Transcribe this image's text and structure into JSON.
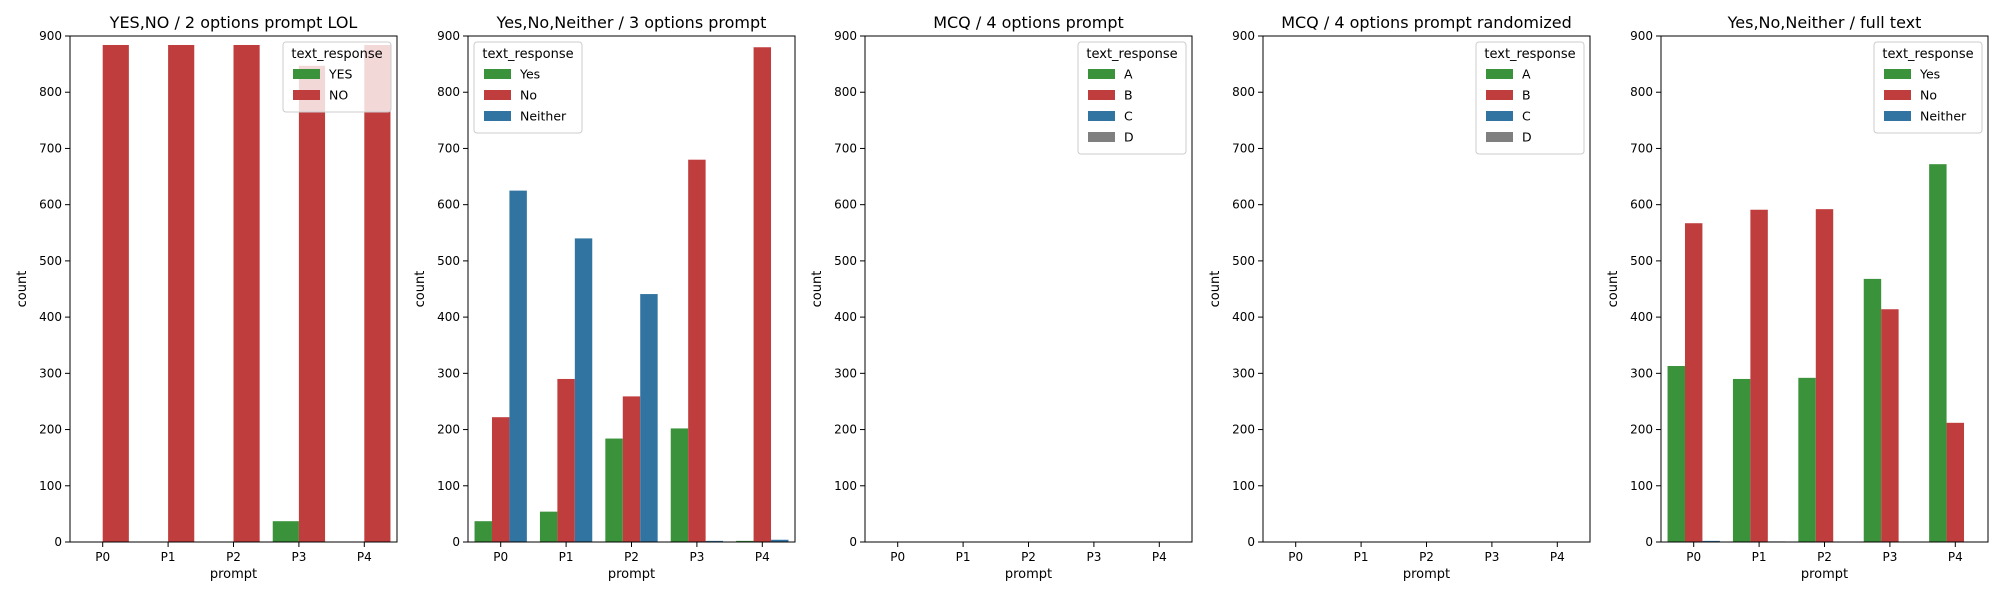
{
  "chart_data": [
    {
      "type": "bar",
      "title": "YES,NO / 2 options prompt LOL",
      "xlabel": "prompt",
      "ylabel": "count",
      "categories": [
        "P0",
        "P1",
        "P2",
        "P3",
        "P4"
      ],
      "ylim": [
        0,
        900
      ],
      "yticks": [
        0,
        100,
        200,
        300,
        400,
        500,
        600,
        700,
        800,
        900
      ],
      "legend": {
        "title": "text_response",
        "position": "top-right"
      },
      "series": [
        {
          "name": "YES",
          "color": "#3a923a",
          "values": [
            0,
            0,
            0,
            37,
            0
          ]
        },
        {
          "name": "NO",
          "color": "#c03d3e",
          "values": [
            884,
            884,
            884,
            847,
            884
          ]
        }
      ]
    },
    {
      "type": "bar",
      "title": "Yes,No,Neither / 3 options prompt",
      "xlabel": "prompt",
      "ylabel": "count",
      "categories": [
        "P0",
        "P1",
        "P2",
        "P3",
        "P4"
      ],
      "ylim": [
        0,
        900
      ],
      "yticks": [
        0,
        100,
        200,
        300,
        400,
        500,
        600,
        700,
        800,
        900
      ],
      "legend": {
        "title": "text_response",
        "position": "top-left"
      },
      "series": [
        {
          "name": "Yes",
          "color": "#3a923a",
          "values": [
            37,
            54,
            184,
            202,
            2
          ]
        },
        {
          "name": "No",
          "color": "#c03d3e",
          "values": [
            222,
            290,
            259,
            680,
            880
          ]
        },
        {
          "name": "Neither",
          "color": "#3274a1",
          "values": [
            625,
            540,
            441,
            2,
            4
          ]
        }
      ]
    },
    {
      "type": "bar",
      "title": "MCQ / 4 options prompt",
      "xlabel": "prompt",
      "ylabel": "count",
      "categories": [
        "P0",
        "P1",
        "P2",
        "P3",
        "P4"
      ],
      "ylim": [
        0,
        900
      ],
      "yticks": [
        0,
        100,
        200,
        300,
        400,
        500,
        600,
        700,
        800,
        900
      ],
      "legend": {
        "title": "text_response",
        "position": "top-right"
      },
      "series": [
        {
          "name": "A",
          "color": "#3a923a",
          "values": [
            0,
            0,
            0,
            0,
            0
          ]
        },
        {
          "name": "B",
          "color": "#c03d3e",
          "values": [
            0,
            0,
            0,
            0,
            0
          ]
        },
        {
          "name": "C",
          "color": "#3274a1",
          "values": [
            0,
            0,
            0,
            0,
            0
          ]
        },
        {
          "name": "D",
          "color": "#7f7f7f",
          "values": [
            0,
            0,
            0,
            0,
            0
          ]
        }
      ]
    },
    {
      "type": "bar",
      "title": "MCQ / 4 options prompt randomized",
      "xlabel": "prompt",
      "ylabel": "count",
      "categories": [
        "P0",
        "P1",
        "P2",
        "P3",
        "P4"
      ],
      "ylim": [
        0,
        900
      ],
      "yticks": [
        0,
        100,
        200,
        300,
        400,
        500,
        600,
        700,
        800,
        900
      ],
      "legend": {
        "title": "text_response",
        "position": "top-right"
      },
      "series": [
        {
          "name": "A",
          "color": "#3a923a",
          "values": [
            0,
            0,
            0,
            0,
            0
          ]
        },
        {
          "name": "B",
          "color": "#c03d3e",
          "values": [
            0,
            0,
            0,
            0,
            0
          ]
        },
        {
          "name": "C",
          "color": "#3274a1",
          "values": [
            0,
            0,
            0,
            0,
            0
          ]
        },
        {
          "name": "D",
          "color": "#7f7f7f",
          "values": [
            0,
            0,
            0,
            0,
            0
          ]
        }
      ]
    },
    {
      "type": "bar",
      "title": "Yes,No,Neither / full text",
      "xlabel": "prompt",
      "ylabel": "count",
      "categories": [
        "P0",
        "P1",
        "P2",
        "P3",
        "P4"
      ],
      "ylim": [
        0,
        900
      ],
      "yticks": [
        0,
        100,
        200,
        300,
        400,
        500,
        600,
        700,
        800,
        900
      ],
      "legend": {
        "title": "text_response",
        "position": "top-right"
      },
      "series": [
        {
          "name": "Yes",
          "color": "#3a923a",
          "values": [
            313,
            290,
            292,
            468,
            672
          ]
        },
        {
          "name": "No",
          "color": "#c03d3e",
          "values": [
            567,
            591,
            592,
            414,
            212
          ]
        },
        {
          "name": "Neither",
          "color": "#3274a1",
          "values": [
            2,
            1,
            0,
            0,
            0
          ]
        }
      ]
    }
  ]
}
